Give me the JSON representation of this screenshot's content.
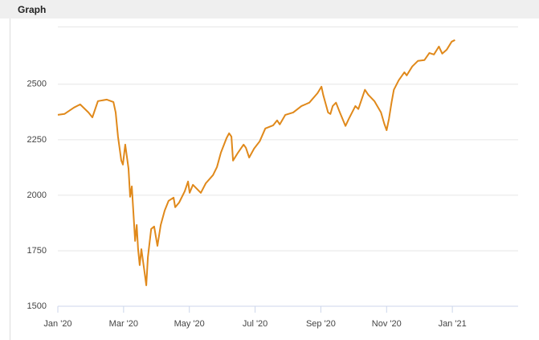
{
  "header": {
    "title": "Graph"
  },
  "chart_data": {
    "type": "line",
    "x": [
      0,
      0.2,
      0.49,
      0.68,
      0.93,
      1.05,
      1.22,
      1.49,
      1.69,
      1.76,
      1.83,
      1.93,
      1.98,
      2.05,
      2.15,
      2.2,
      2.25,
      2.35,
      2.4,
      2.44,
      2.49,
      2.54,
      2.64,
      2.69,
      2.74,
      2.84,
      2.93,
      3.03,
      3.13,
      3.25,
      3.37,
      3.52,
      3.57,
      3.69,
      3.86,
      3.96,
      4.01,
      4.11,
      4.35,
      4.5,
      4.72,
      4.84,
      4.96,
      5.13,
      5.21,
      5.28,
      5.33,
      5.48,
      5.65,
      5.72,
      5.82,
      5.97,
      6.14,
      6.31,
      6.55,
      6.67,
      6.75,
      6.92,
      7.16,
      7.41,
      7.65,
      7.9,
      8.02,
      8.07,
      8.22,
      8.29,
      8.36,
      8.46,
      8.56,
      8.75,
      8.85,
      9.05,
      9.14,
      9.34,
      9.44,
      9.63,
      9.83,
      9.93,
      10,
      10.07,
      10.15,
      10.22,
      10.37,
      10.54,
      10.61,
      10.78,
      10.95,
      11.15,
      11.3,
      11.44,
      11.59,
      11.69,
      11.83,
      11.98,
      12.08
    ],
    "series": [
      {
        "color": "#e0891b",
        "values": [
          2362,
          2366,
          2395,
          2409,
          2373,
          2351,
          2424,
          2431,
          2420,
          2373,
          2264,
          2156,
          2138,
          2228,
          2120,
          1993,
          2040,
          1794,
          1866,
          1757,
          1685,
          1757,
          1649,
          1594,
          1721,
          1848,
          1859,
          1772,
          1866,
          1931,
          1975,
          1989,
          1946,
          1967,
          2018,
          2062,
          2011,
          2047,
          2011,
          2054,
          2091,
          2127,
          2192,
          2257,
          2279,
          2264,
          2156,
          2192,
          2228,
          2214,
          2170,
          2210,
          2243,
          2301,
          2315,
          2337,
          2319,
          2362,
          2373,
          2402,
          2417,
          2460,
          2489,
          2453,
          2373,
          2366,
          2402,
          2417,
          2380,
          2312,
          2344,
          2402,
          2388,
          2475,
          2453,
          2424,
          2373,
          2322,
          2293,
          2344,
          2417,
          2475,
          2518,
          2554,
          2540,
          2580,
          2605,
          2609,
          2641,
          2634,
          2670,
          2638,
          2656,
          2692,
          2699
        ]
      }
    ],
    "xlim": [
      0,
      14
    ],
    "xticks": [
      {
        "value": 0,
        "label": "Jan '20"
      },
      {
        "value": 2,
        "label": "Mar '20"
      },
      {
        "value": 4,
        "label": "May '20"
      },
      {
        "value": 6,
        "label": "Jul '20"
      },
      {
        "value": 8,
        "label": "Sep '20"
      },
      {
        "value": 10,
        "label": "Nov '20"
      },
      {
        "value": 12,
        "label": "Jan '21"
      }
    ],
    "ylim": [
      1500,
      2760
    ],
    "yticks": [
      1500,
      1750,
      2000,
      2250,
      2500
    ],
    "grid": true
  }
}
